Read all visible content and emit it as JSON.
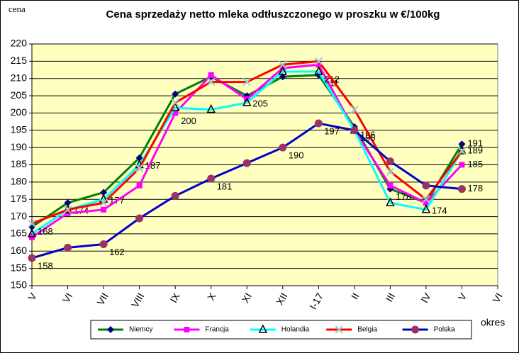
{
  "chart_data": {
    "type": "line",
    "title": "Cena sprzedaży netto mleka odtłuszczonego w proszku w €/100kg",
    "y_label": "cena",
    "x_label": "okres",
    "categories": [
      "V",
      "VI",
      "VII",
      "VIII",
      "IX",
      "X",
      "XI",
      "XII",
      "I-17",
      "II",
      "III",
      "IV",
      "V",
      "VI"
    ],
    "ylim": [
      150,
      220
    ],
    "yticks": [
      150,
      155,
      160,
      165,
      170,
      175,
      180,
      185,
      190,
      195,
      200,
      205,
      210,
      215,
      220
    ],
    "grid": true,
    "legend": "bottom",
    "series": [
      {
        "name": "Niemcy",
        "color": "#008000",
        "marker": "diamond",
        "marker_color": "#000080",
        "values": [
          167,
          174,
          177,
          187,
          205.5,
          210.5,
          205,
          210.5,
          211,
          196,
          178,
          174,
          191,
          null
        ],
        "value_labels": [
          null,
          "174",
          "177",
          "187",
          null,
          null,
          "205",
          null,
          "211",
          "196",
          "178",
          "174",
          "191",
          null
        ]
      },
      {
        "name": "Francja",
        "color": "#ff00ff",
        "marker": "square",
        "marker_color": "#ff00ff",
        "values": [
          164,
          171,
          172,
          179,
          200,
          211,
          204,
          213,
          214,
          195,
          179,
          174,
          185,
          null
        ],
        "value_labels": [
          null,
          null,
          null,
          null,
          "200",
          null,
          null,
          null,
          null,
          null,
          null,
          null,
          "185",
          null
        ]
      },
      {
        "name": "Holandia",
        "color": "#00ffff",
        "marker": "triangle",
        "marker_color": "#000000",
        "values": [
          165,
          172,
          175,
          185,
          201.5,
          201,
          203,
          212,
          212,
          195,
          174,
          172,
          189,
          null
        ],
        "value_labels": [
          null,
          null,
          null,
          null,
          null,
          null,
          null,
          null,
          "212",
          null,
          null,
          null,
          "189",
          null
        ]
      },
      {
        "name": "Belgia",
        "color": "#ff0000",
        "marker": "cross",
        "marker_color": "#99cccc",
        "values": [
          168,
          172,
          174,
          184,
          203,
          209,
          209,
          214,
          215,
          201,
          183,
          175,
          189,
          null
        ],
        "value_labels": [
          "168",
          null,
          null,
          null,
          null,
          null,
          null,
          null,
          null,
          null,
          null,
          null,
          null,
          null
        ]
      },
      {
        "name": "Polska",
        "color": "#0000cc",
        "marker": "circle",
        "marker_color": "#993366",
        "values": [
          158,
          161,
          162,
          169.5,
          176,
          181,
          185.5,
          190,
          197,
          195,
          186,
          179,
          178,
          null
        ],
        "value_labels": [
          "158",
          null,
          "162",
          null,
          null,
          "181",
          null,
          "190",
          "197",
          "195",
          null,
          null,
          "178",
          null
        ]
      }
    ]
  }
}
